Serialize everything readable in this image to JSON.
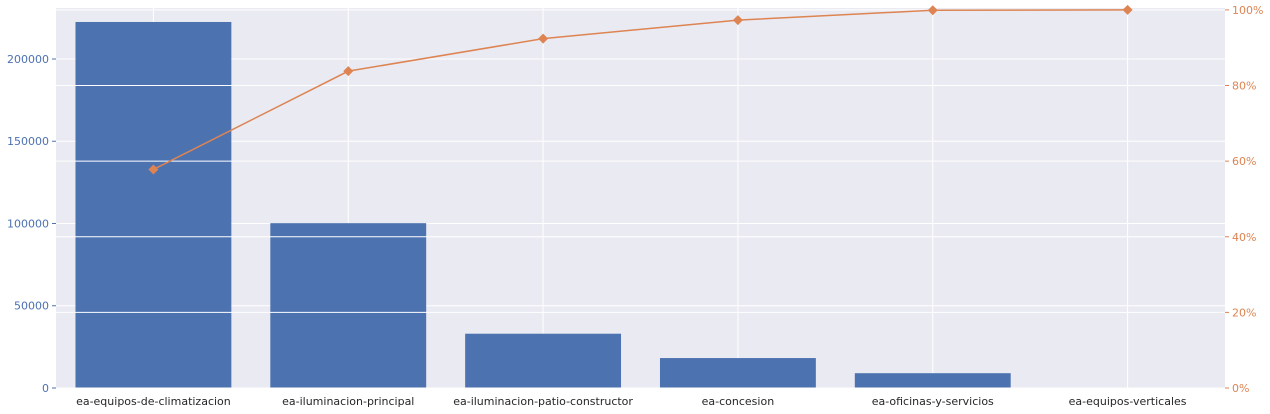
{
  "chart_data": {
    "type": "bar",
    "categories": [
      "ea-equipos-de-climatizacion",
      "ea-iluminacion-principal",
      "ea-iluminacion-patio-constructor",
      "ea-concesion",
      "ea-oficinas-y-servicios",
      "ea-equipos-verticales"
    ],
    "series": [
      {
        "type": "bar",
        "values": [
          222500,
          100200,
          33000,
          18200,
          9000,
          200
        ],
        "color": "#4c72b0"
      },
      {
        "type": "line",
        "marker": "diamond",
        "values": [
          57.8,
          83.8,
          92.4,
          97.3,
          99.9,
          100
        ],
        "color": "#dd8452"
      }
    ],
    "y_left": {
      "ylim": [
        0,
        231000
      ],
      "ticks": [
        0,
        50000,
        100000,
        150000,
        200000
      ],
      "tick_labels": [
        "0",
        "50000",
        "100000",
        "150000",
        "200000"
      ],
      "color": "#4c72b0"
    },
    "y_right": {
      "ylim": [
        0,
        100.5
      ],
      "ticks": [
        0,
        20,
        40,
        60,
        80,
        100
      ],
      "tick_labels": [
        "0%",
        "20%",
        "40%",
        "60%",
        "80%",
        "100%"
      ],
      "color": "#dd8452"
    },
    "title": "",
    "xlabel": "",
    "ylabel": "",
    "grid": true,
    "background": "#eaeaf2"
  }
}
